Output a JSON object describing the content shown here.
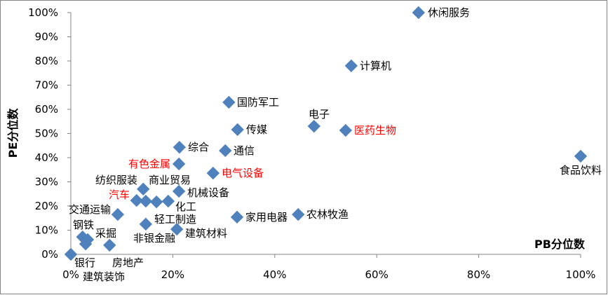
{
  "chart_data": {
    "type": "scatter",
    "title": "",
    "xlabel": "PB分位数",
    "ylabel": "PE分位数",
    "xlim": [
      0,
      100
    ],
    "ylim": [
      0,
      100
    ],
    "x_ticks": [
      "0%",
      "20%",
      "40%",
      "60%",
      "80%",
      "100%"
    ],
    "y_ticks": [
      "0%",
      "10%",
      "20%",
      "30%",
      "40%",
      "50%",
      "60%",
      "70%",
      "80%",
      "90%",
      "100%"
    ],
    "grid": false,
    "marker_color": "#4F81BD",
    "highlight_color": "#FF0000",
    "points": [
      {
        "name": "休闲服务",
        "x": 68.2,
        "y": 100,
        "highlight": false
      },
      {
        "name": "计算机",
        "x": 55.0,
        "y": 78.0,
        "highlight": false
      },
      {
        "name": "国防军工",
        "x": 31.0,
        "y": 62.9,
        "highlight": false
      },
      {
        "name": "传媒",
        "x": 32.7,
        "y": 51.6,
        "highlight": false
      },
      {
        "name": "电子",
        "x": 47.7,
        "y": 53.0,
        "highlight": false
      },
      {
        "name": "医药生物",
        "x": 53.9,
        "y": 51.3,
        "highlight": true
      },
      {
        "name": "食品饮料",
        "x": 100,
        "y": 40.6,
        "highlight": false
      },
      {
        "name": "综合",
        "x": 21.3,
        "y": 44.3,
        "highlight": false
      },
      {
        "name": "通信",
        "x": 30.3,
        "y": 42.9,
        "highlight": false
      },
      {
        "name": "有色金属",
        "x": 21.2,
        "y": 37.4,
        "highlight": true
      },
      {
        "name": "电气设备",
        "x": 27.9,
        "y": 33.6,
        "highlight": true
      },
      {
        "name": "纺织服装",
        "x": 14.2,
        "y": 27.0,
        "highlight": false
      },
      {
        "name": "汽车",
        "x": 12.9,
        "y": 22.3,
        "highlight": true
      },
      {
        "name": "商业贸易",
        "x": 14.7,
        "y": 22.0,
        "highlight": false
      },
      {
        "name": "轻工制造",
        "x": 16.8,
        "y": 21.7,
        "highlight": false
      },
      {
        "name": "化工",
        "x": 19.1,
        "y": 22.0,
        "highlight": false
      },
      {
        "name": "机械设备",
        "x": 21.2,
        "y": 26.1,
        "highlight": false
      },
      {
        "name": "交通运输",
        "x": 9.2,
        "y": 16.5,
        "highlight": false
      },
      {
        "name": "非银金融",
        "x": 14.7,
        "y": 12.5,
        "highlight": false
      },
      {
        "name": "建筑材料",
        "x": 20.8,
        "y": 10.4,
        "highlight": false
      },
      {
        "name": "家用电器",
        "x": 32.6,
        "y": 15.4,
        "highlight": false
      },
      {
        "name": "农林牧渔",
        "x": 44.6,
        "y": 16.5,
        "highlight": false
      },
      {
        "name": "钢铁",
        "x": 2.3,
        "y": 7.2,
        "highlight": false
      },
      {
        "name": "采掘",
        "x": 3.3,
        "y": 6.1,
        "highlight": false
      },
      {
        "name": "建筑装饰",
        "x": 2.9,
        "y": 4.3,
        "highlight": false
      },
      {
        "name": "房地产",
        "x": 7.6,
        "y": 3.8,
        "highlight": false
      },
      {
        "name": "银行",
        "x": 0,
        "y": 0,
        "highlight": false
      }
    ]
  }
}
